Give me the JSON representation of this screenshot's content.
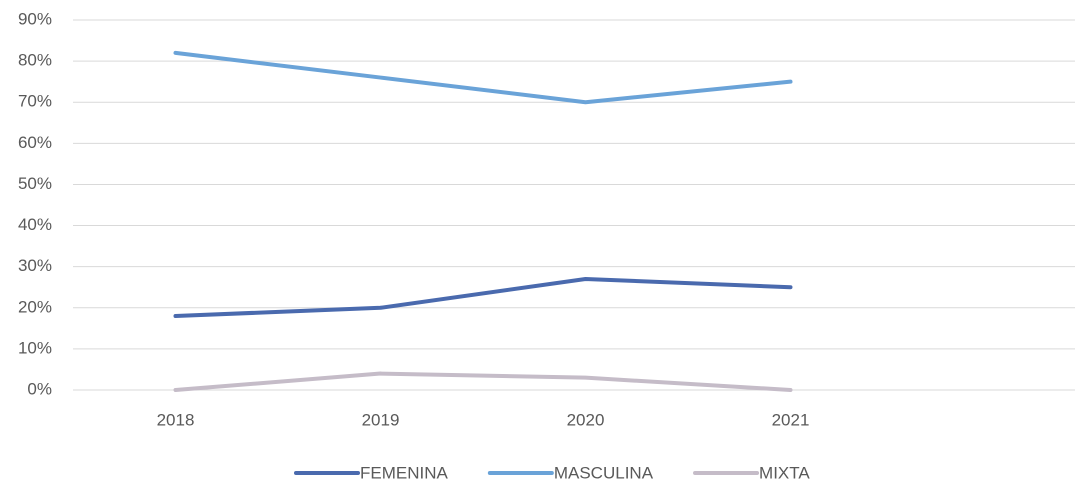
{
  "chart_data": {
    "type": "line",
    "categories": [
      "2018",
      "2019",
      "2020",
      "2021",
      null
    ],
    "series": [
      {
        "name": "FEMENINA",
        "color": "#4a6aae",
        "values": [
          18,
          20,
          27,
          25,
          null
        ]
      },
      {
        "name": "MASCULINA",
        "color": "#6aa3d8",
        "values": [
          82,
          76,
          70,
          75,
          null
        ]
      },
      {
        "name": "MIXTA",
        "color": "#c5bcc8",
        "values": [
          0,
          4,
          3,
          0,
          null
        ]
      }
    ],
    "ylim": [
      0,
      90
    ],
    "yticks": [
      {
        "value": 0,
        "label": "0%"
      },
      {
        "value": 10,
        "label": "10%"
      },
      {
        "value": 20,
        "label": "20%"
      },
      {
        "value": 30,
        "label": "30%"
      },
      {
        "value": 40,
        "label": "40%"
      },
      {
        "value": 50,
        "label": "50%"
      },
      {
        "value": 60,
        "label": "60%"
      },
      {
        "value": 70,
        "label": "70%"
      },
      {
        "value": 80,
        "label": "80%"
      },
      {
        "value": 90,
        "label": "90%"
      }
    ],
    "grid": true,
    "legend": "bottom"
  }
}
